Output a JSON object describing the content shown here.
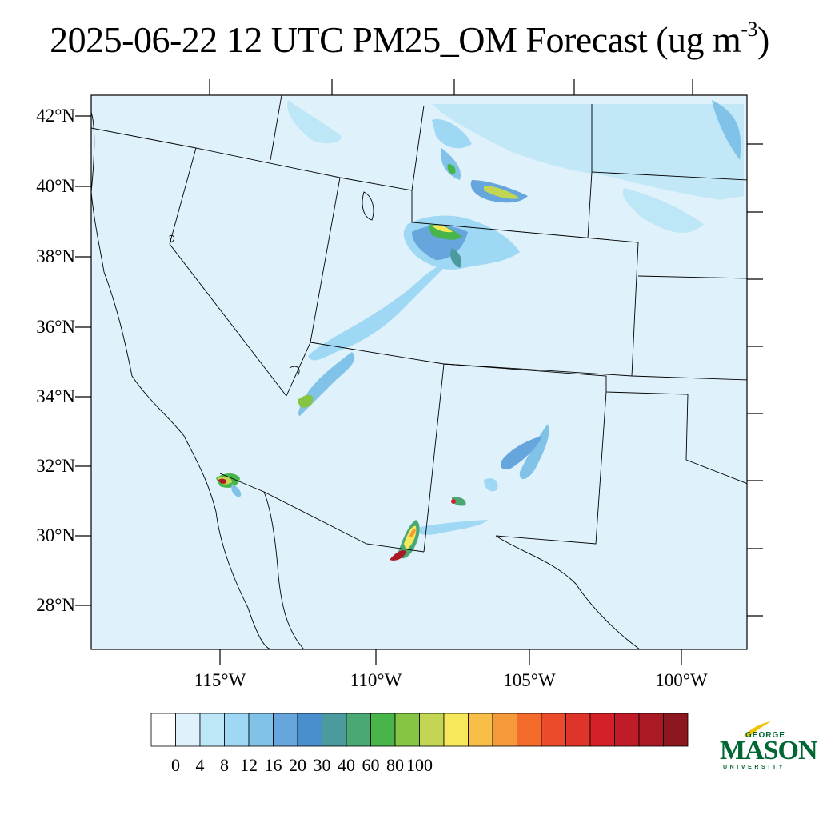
{
  "title": {
    "text": "2025-06-22 12 UTC PM25_OM Forecast (ug m",
    "exponent": "-3",
    "close": ")"
  },
  "map": {
    "lat_labels": [
      "42°N",
      "40°N",
      "38°N",
      "36°N",
      "34°N",
      "32°N",
      "30°N",
      "28°N"
    ],
    "lon_labels": [
      "115°W",
      "110°W",
      "105°W",
      "100°W"
    ],
    "background_color": "#dff1fb",
    "border_color": "#000000"
  },
  "colorbar": {
    "labels": [
      "0",
      "4",
      "8",
      "12",
      "16",
      "20",
      "30",
      "40",
      "60",
      "80",
      "100"
    ],
    "colors": [
      "#ffffff",
      "#dff1fb",
      "#bde6f7",
      "#9ed8f4",
      "#81c2e8",
      "#66a6dc",
      "#4a8fcd",
      "#4a9a9e",
      "#4aa874",
      "#47b54a",
      "#86c443",
      "#c2d654",
      "#f6e85a",
      "#f8be48",
      "#f59a3a",
      "#f26b2b",
      "#eb4b2b",
      "#df3429",
      "#d42029",
      "#bf1c27",
      "#a91a24",
      "#8d171e"
    ]
  },
  "logo": {
    "line1": "GEORGE",
    "line2": "MASON",
    "line3": "UNIVERSITY"
  }
}
